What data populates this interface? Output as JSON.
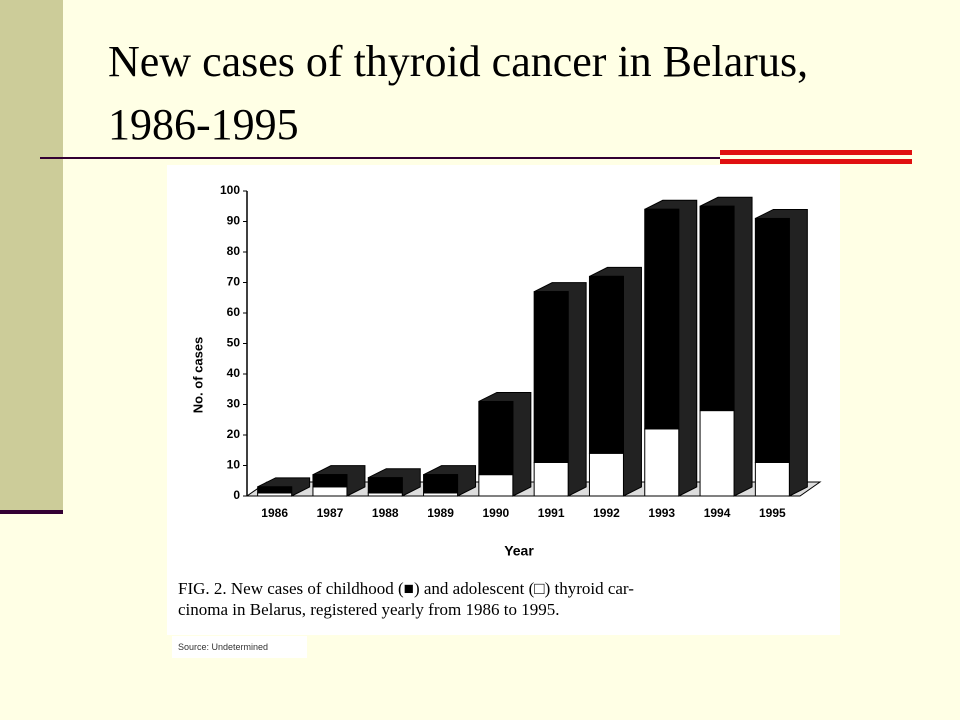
{
  "title": "New cases of thyroid cancer in Belarus, 1986-1995",
  "source": "Source: Undetermined",
  "chart_data": {
    "type": "stacked-bar-3d",
    "categories": [
      "1986",
      "1987",
      "1988",
      "1989",
      "1990",
      "1991",
      "1992",
      "1993",
      "1994",
      "1995"
    ],
    "series": [
      {
        "color": "#ffffff",
        "values": [
          1,
          3,
          1,
          1,
          7,
          11,
          14,
          22,
          28,
          11
        ]
      },
      {
        "color": "#000000",
        "values": [
          2,
          4,
          5,
          6,
          24,
          56,
          58,
          72,
          67,
          80
        ]
      }
    ],
    "ylim": [
      0,
      100
    ],
    "yticks": [
      0,
      10,
      20,
      30,
      40,
      50,
      60,
      70,
      80,
      90,
      100
    ],
    "y_label": "No. of cases",
    "x_label": "Year",
    "caption": [
      "FIG. 2. New cases of childhood (■) and adolescent (□) thyroid car-",
      "cinoma in Belarus, registered yearly from 1986 to 1995."
    ]
  }
}
